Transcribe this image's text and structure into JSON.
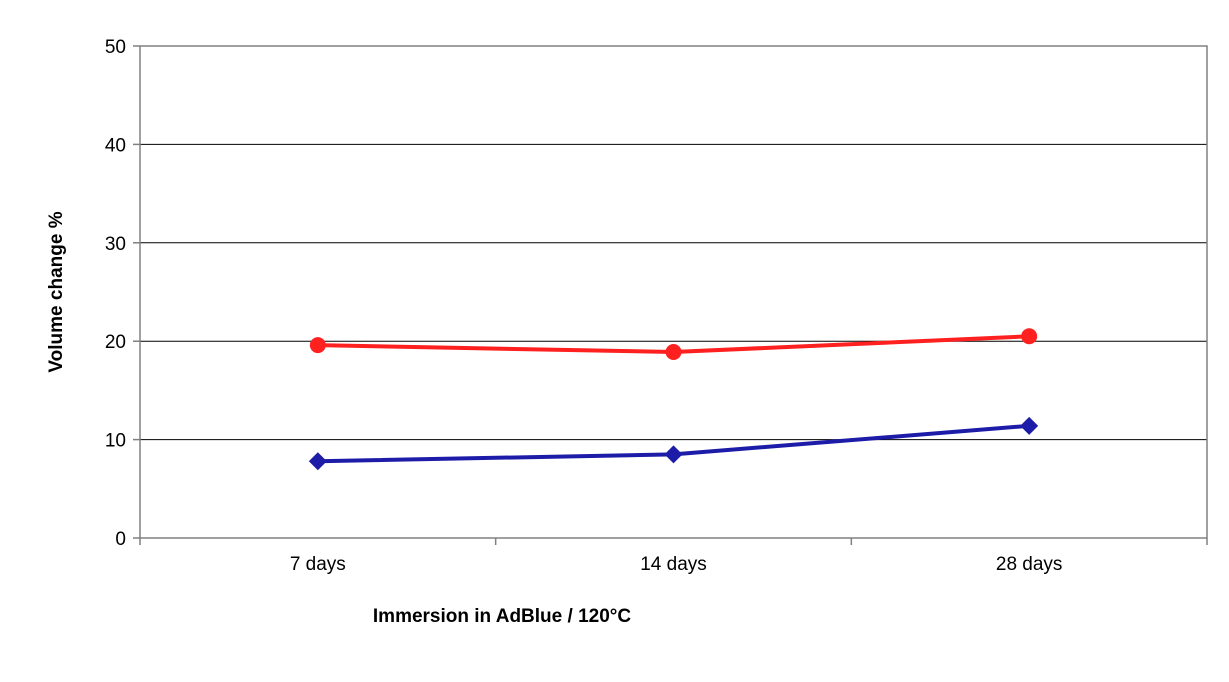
{
  "chart_data": {
    "type": "line",
    "title": "",
    "xlabel": "Immersion in AdBlue / 120°C",
    "ylabel": "Volume change %",
    "categories": [
      "7 days",
      "14 days",
      "28 days"
    ],
    "ylim": [
      0,
      50
    ],
    "yticks": [
      "0",
      "10",
      "20",
      "30",
      "40",
      "50"
    ],
    "grid": true,
    "legend": "none",
    "series": [
      {
        "values": [
          19.6,
          18.9,
          20.5
        ],
        "color": "#ff2020",
        "marker": "circle"
      },
      {
        "values": [
          7.8,
          8.5,
          11.4
        ],
        "color": "#1c1ca8",
        "marker": "diamond"
      }
    ]
  }
}
